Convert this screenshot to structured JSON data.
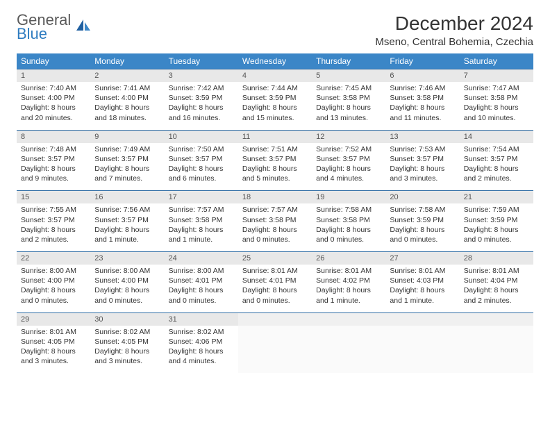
{
  "logo": {
    "top": "General",
    "bottom": "Blue"
  },
  "title": "December 2024",
  "location": "Mseno, Central Bohemia, Czechia",
  "colors": {
    "header_bg": "#3b86c7",
    "header_text": "#ffffff",
    "row_border": "#2b6aa3",
    "daynum_bg": "#e8e8e8",
    "logo_blue": "#2f7cc0"
  },
  "weekdays": [
    "Sunday",
    "Monday",
    "Tuesday",
    "Wednesday",
    "Thursday",
    "Friday",
    "Saturday"
  ],
  "weeks": [
    [
      {
        "n": "1",
        "sunrise": "Sunrise: 7:40 AM",
        "sunset": "Sunset: 4:00 PM",
        "day1": "Daylight: 8 hours",
        "day2": "and 20 minutes."
      },
      {
        "n": "2",
        "sunrise": "Sunrise: 7:41 AM",
        "sunset": "Sunset: 4:00 PM",
        "day1": "Daylight: 8 hours",
        "day2": "and 18 minutes."
      },
      {
        "n": "3",
        "sunrise": "Sunrise: 7:42 AM",
        "sunset": "Sunset: 3:59 PM",
        "day1": "Daylight: 8 hours",
        "day2": "and 16 minutes."
      },
      {
        "n": "4",
        "sunrise": "Sunrise: 7:44 AM",
        "sunset": "Sunset: 3:59 PM",
        "day1": "Daylight: 8 hours",
        "day2": "and 15 minutes."
      },
      {
        "n": "5",
        "sunrise": "Sunrise: 7:45 AM",
        "sunset": "Sunset: 3:58 PM",
        "day1": "Daylight: 8 hours",
        "day2": "and 13 minutes."
      },
      {
        "n": "6",
        "sunrise": "Sunrise: 7:46 AM",
        "sunset": "Sunset: 3:58 PM",
        "day1": "Daylight: 8 hours",
        "day2": "and 11 minutes."
      },
      {
        "n": "7",
        "sunrise": "Sunrise: 7:47 AM",
        "sunset": "Sunset: 3:58 PM",
        "day1": "Daylight: 8 hours",
        "day2": "and 10 minutes."
      }
    ],
    [
      {
        "n": "8",
        "sunrise": "Sunrise: 7:48 AM",
        "sunset": "Sunset: 3:57 PM",
        "day1": "Daylight: 8 hours",
        "day2": "and 9 minutes."
      },
      {
        "n": "9",
        "sunrise": "Sunrise: 7:49 AM",
        "sunset": "Sunset: 3:57 PM",
        "day1": "Daylight: 8 hours",
        "day2": "and 7 minutes."
      },
      {
        "n": "10",
        "sunrise": "Sunrise: 7:50 AM",
        "sunset": "Sunset: 3:57 PM",
        "day1": "Daylight: 8 hours",
        "day2": "and 6 minutes."
      },
      {
        "n": "11",
        "sunrise": "Sunrise: 7:51 AM",
        "sunset": "Sunset: 3:57 PM",
        "day1": "Daylight: 8 hours",
        "day2": "and 5 minutes."
      },
      {
        "n": "12",
        "sunrise": "Sunrise: 7:52 AM",
        "sunset": "Sunset: 3:57 PM",
        "day1": "Daylight: 8 hours",
        "day2": "and 4 minutes."
      },
      {
        "n": "13",
        "sunrise": "Sunrise: 7:53 AM",
        "sunset": "Sunset: 3:57 PM",
        "day1": "Daylight: 8 hours",
        "day2": "and 3 minutes."
      },
      {
        "n": "14",
        "sunrise": "Sunrise: 7:54 AM",
        "sunset": "Sunset: 3:57 PM",
        "day1": "Daylight: 8 hours",
        "day2": "and 2 minutes."
      }
    ],
    [
      {
        "n": "15",
        "sunrise": "Sunrise: 7:55 AM",
        "sunset": "Sunset: 3:57 PM",
        "day1": "Daylight: 8 hours",
        "day2": "and 2 minutes."
      },
      {
        "n": "16",
        "sunrise": "Sunrise: 7:56 AM",
        "sunset": "Sunset: 3:57 PM",
        "day1": "Daylight: 8 hours",
        "day2": "and 1 minute."
      },
      {
        "n": "17",
        "sunrise": "Sunrise: 7:57 AM",
        "sunset": "Sunset: 3:58 PM",
        "day1": "Daylight: 8 hours",
        "day2": "and 1 minute."
      },
      {
        "n": "18",
        "sunrise": "Sunrise: 7:57 AM",
        "sunset": "Sunset: 3:58 PM",
        "day1": "Daylight: 8 hours",
        "day2": "and 0 minutes."
      },
      {
        "n": "19",
        "sunrise": "Sunrise: 7:58 AM",
        "sunset": "Sunset: 3:58 PM",
        "day1": "Daylight: 8 hours",
        "day2": "and 0 minutes."
      },
      {
        "n": "20",
        "sunrise": "Sunrise: 7:58 AM",
        "sunset": "Sunset: 3:59 PM",
        "day1": "Daylight: 8 hours",
        "day2": "and 0 minutes."
      },
      {
        "n": "21",
        "sunrise": "Sunrise: 7:59 AM",
        "sunset": "Sunset: 3:59 PM",
        "day1": "Daylight: 8 hours",
        "day2": "and 0 minutes."
      }
    ],
    [
      {
        "n": "22",
        "sunrise": "Sunrise: 8:00 AM",
        "sunset": "Sunset: 4:00 PM",
        "day1": "Daylight: 8 hours",
        "day2": "and 0 minutes."
      },
      {
        "n": "23",
        "sunrise": "Sunrise: 8:00 AM",
        "sunset": "Sunset: 4:00 PM",
        "day1": "Daylight: 8 hours",
        "day2": "and 0 minutes."
      },
      {
        "n": "24",
        "sunrise": "Sunrise: 8:00 AM",
        "sunset": "Sunset: 4:01 PM",
        "day1": "Daylight: 8 hours",
        "day2": "and 0 minutes."
      },
      {
        "n": "25",
        "sunrise": "Sunrise: 8:01 AM",
        "sunset": "Sunset: 4:01 PM",
        "day1": "Daylight: 8 hours",
        "day2": "and 0 minutes."
      },
      {
        "n": "26",
        "sunrise": "Sunrise: 8:01 AM",
        "sunset": "Sunset: 4:02 PM",
        "day1": "Daylight: 8 hours",
        "day2": "and 1 minute."
      },
      {
        "n": "27",
        "sunrise": "Sunrise: 8:01 AM",
        "sunset": "Sunset: 4:03 PM",
        "day1": "Daylight: 8 hours",
        "day2": "and 1 minute."
      },
      {
        "n": "28",
        "sunrise": "Sunrise: 8:01 AM",
        "sunset": "Sunset: 4:04 PM",
        "day1": "Daylight: 8 hours",
        "day2": "and 2 minutes."
      }
    ],
    [
      {
        "n": "29",
        "sunrise": "Sunrise: 8:01 AM",
        "sunset": "Sunset: 4:05 PM",
        "day1": "Daylight: 8 hours",
        "day2": "and 3 minutes."
      },
      {
        "n": "30",
        "sunrise": "Sunrise: 8:02 AM",
        "sunset": "Sunset: 4:05 PM",
        "day1": "Daylight: 8 hours",
        "day2": "and 3 minutes."
      },
      {
        "n": "31",
        "sunrise": "Sunrise: 8:02 AM",
        "sunset": "Sunset: 4:06 PM",
        "day1": "Daylight: 8 hours",
        "day2": "and 4 minutes."
      },
      null,
      null,
      null,
      null
    ]
  ]
}
